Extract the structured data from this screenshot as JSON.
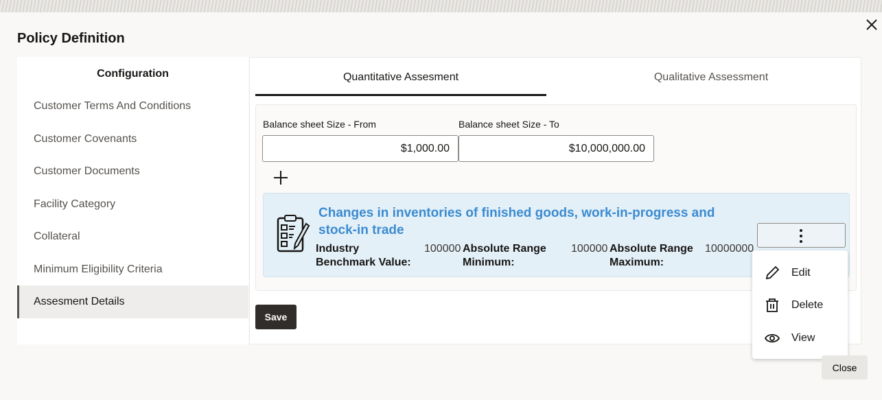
{
  "dialog": {
    "title": "Policy Definition",
    "close_label": "Close"
  },
  "sidebar": {
    "heading": "Configuration",
    "items": [
      {
        "label": "Customer Terms And Conditions"
      },
      {
        "label": "Customer Covenants"
      },
      {
        "label": "Customer Documents"
      },
      {
        "label": "Facility Category"
      },
      {
        "label": "Collateral"
      },
      {
        "label": "Minimum Eligibility Criteria"
      },
      {
        "label": "Assesment Details",
        "active": true
      }
    ]
  },
  "tabs": [
    {
      "label": "Quantitative Assesment",
      "active": true
    },
    {
      "label": "Qualitative Assessment"
    }
  ],
  "form": {
    "from_label": "Balance sheet Size - From",
    "from_value": "$1,000.00",
    "to_label": "Balance sheet Size - To",
    "to_value": "$10,000,000.00"
  },
  "card": {
    "title": "Changes in inventories of finished goods, work-in-progress and stock-in trade",
    "fields": [
      {
        "label": "Industry Benchmark Value:",
        "value": "100000"
      },
      {
        "label": "Absolute Range Minimum:",
        "value": "100000"
      },
      {
        "label": "Absolute Range Maximum:",
        "value": "10000000"
      }
    ]
  },
  "menu": {
    "items": [
      {
        "label": "Edit",
        "icon": "pencil-icon"
      },
      {
        "label": "Delete",
        "icon": "trash-icon"
      },
      {
        "label": "View",
        "icon": "eye-icon"
      }
    ]
  },
  "save_label": "Save",
  "colors": {
    "accent": "#3b8bd0",
    "card_bg": "#e4f0f8",
    "primary_button": "#312d2a"
  }
}
